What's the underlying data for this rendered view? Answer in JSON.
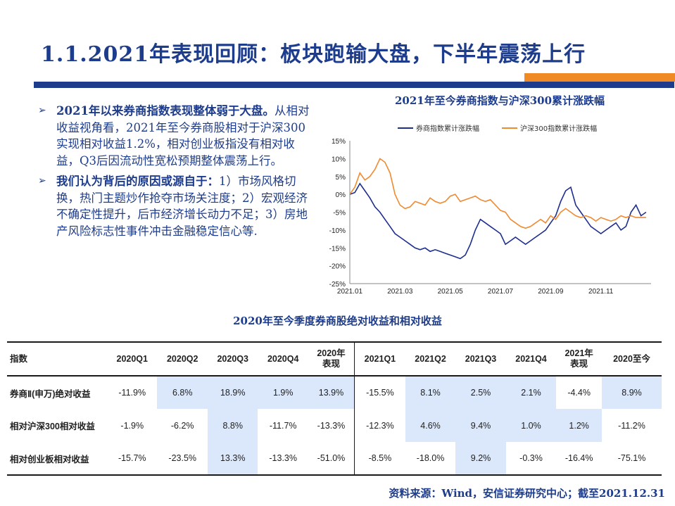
{
  "title": "1.1.2021年表现回顾：板块跑输大盘，下半年震荡上行",
  "bullets": [
    {
      "lead": "2021年以来券商指数表现整体弱于大盘。",
      "body": "从相对收益视角看，2021年至今券商股相对于沪深300实现相对收益1.2%，相对创业板指没有相对收益，Q3后因流动性宽松预期整体震荡上行。"
    },
    {
      "lead": "我们认为背后的原因或源自于：",
      "body": "1）市场风格切换，热门主题炒作抢夺市场关注度；2）宏观经济不确定性提升，后市经济增长动力不足；3）房地产风险标志性事件冲击金融稳定信心等."
    }
  ],
  "chart_title": "2021年至今券商指数与沪深300累计涨跌幅",
  "chart_data": {
    "type": "line",
    "title": "2021年至今券商指数与沪深300累计涨跌幅",
    "x_ticks": [
      "2021.01",
      "2021.03",
      "2021.05",
      "2021.07",
      "2021.09",
      "2021.11"
    ],
    "y_ticks": [
      "15%",
      "10%",
      "5%",
      "0%",
      "-5%",
      "-10%",
      "-15%",
      "-20%",
      "-25%"
    ],
    "ylim": [
      -25,
      15
    ],
    "xlim": [
      0,
      12
    ],
    "legend_position": "top",
    "series": [
      {
        "name": "券商指数累计涨跌幅",
        "color": "#1d2e8f",
        "x": [
          0,
          0.2,
          0.4,
          0.6,
          0.8,
          1.0,
          1.2,
          1.4,
          1.6,
          1.8,
          2.0,
          2.2,
          2.4,
          2.6,
          2.8,
          3.0,
          3.2,
          3.4,
          3.6,
          3.8,
          4.0,
          4.2,
          4.4,
          4.6,
          4.8,
          5.0,
          5.2,
          5.4,
          5.6,
          5.8,
          6.0,
          6.2,
          6.4,
          6.6,
          6.8,
          7.0,
          7.2,
          7.4,
          7.6,
          7.8,
          8.0,
          8.2,
          8.4,
          8.6,
          8.8,
          9.0,
          9.2,
          9.4,
          9.6,
          9.8,
          10.0,
          10.2,
          10.4,
          10.6,
          10.8,
          11.0,
          11.2,
          11.4,
          11.6,
          11.8
        ],
        "y": [
          0,
          0.5,
          3,
          1,
          -1,
          -3.5,
          -5,
          -7,
          -9,
          -11,
          -12,
          -13,
          -14,
          -15,
          -15.5,
          -15,
          -16,
          -15.5,
          -16,
          -16.5,
          -17,
          -17.5,
          -18,
          -17,
          -14,
          -10,
          -7,
          -8,
          -9,
          -10,
          -11,
          -14,
          -13,
          -12,
          -13,
          -14,
          -13,
          -12,
          -11,
          -10,
          -8,
          -6,
          -2,
          1,
          2,
          -3,
          -5,
          -7,
          -9,
          -10,
          -11,
          -10,
          -9,
          -8,
          -10,
          -9,
          -5,
          -3,
          -6,
          -5
        ]
      },
      {
        "name": "沪深300指数累计涨跌幅",
        "color": "#f08a30",
        "x": [
          0,
          0.2,
          0.4,
          0.6,
          0.8,
          1.0,
          1.2,
          1.4,
          1.6,
          1.8,
          2.0,
          2.2,
          2.4,
          2.6,
          2.8,
          3.0,
          3.2,
          3.4,
          3.6,
          3.8,
          4.0,
          4.2,
          4.4,
          4.6,
          4.8,
          5.0,
          5.2,
          5.4,
          5.6,
          5.8,
          6.0,
          6.2,
          6.4,
          6.6,
          6.8,
          7.0,
          7.2,
          7.4,
          7.6,
          7.8,
          8.0,
          8.2,
          8.4,
          8.6,
          8.8,
          9.0,
          9.2,
          9.4,
          9.6,
          9.8,
          10.0,
          10.2,
          10.4,
          10.6,
          10.8,
          11.0,
          11.2,
          11.4,
          11.6,
          11.8
        ],
        "y": [
          0,
          2,
          6,
          4,
          5,
          7,
          10,
          9,
          6,
          0,
          -3,
          -4,
          -3.5,
          -2,
          -2.5,
          -3,
          -1,
          -2,
          -2.5,
          -2,
          -0.5,
          0,
          -2,
          -1.5,
          -1,
          -0.5,
          -1.5,
          -2,
          -1.5,
          -3,
          -4.5,
          -5,
          -7,
          -8,
          -9,
          -9.5,
          -9,
          -8,
          -7,
          -8,
          -6,
          -7,
          -5,
          -4,
          -5,
          -6,
          -6.5,
          -6,
          -6.5,
          -7.5,
          -6.5,
          -7,
          -7.5,
          -7,
          -6,
          -6.5,
          -6,
          -6.5,
          -6.5,
          -6.5
        ]
      }
    ]
  },
  "table_title": "2020年至今季度券商股绝对收益和相对收益",
  "table": {
    "headers": [
      "指数",
      "2020Q1",
      "2020Q2",
      "2020Q3",
      "2020Q4",
      "2020年\n表现",
      "2021Q1",
      "2021Q2",
      "2021Q3",
      "2021Q4",
      "2021年\n表现",
      "2020至今"
    ],
    "rows": [
      {
        "name": "券商Ⅱ(申万)绝对收益",
        "cells": [
          "-11.9%",
          "6.8%",
          "18.9%",
          "1.9%",
          "13.9%",
          "-15.5%",
          "8.1%",
          "2.5%",
          "2.1%",
          "-4.4%",
          "8.9%"
        ],
        "hl": [
          false,
          true,
          true,
          true,
          true,
          false,
          true,
          true,
          true,
          false,
          true
        ]
      },
      {
        "name": "相对沪深300相对收益",
        "cells": [
          "-1.9%",
          "-6.2%",
          "8.8%",
          "-11.7%",
          "-13.3%",
          "-12.3%",
          "4.6%",
          "9.4%",
          "1.0%",
          "1.2%",
          "-11.2%"
        ],
        "hl": [
          false,
          false,
          true,
          false,
          false,
          false,
          true,
          true,
          true,
          true,
          false
        ]
      },
      {
        "name": "相对创业板相对收益",
        "cells": [
          "-15.7%",
          "-23.5%",
          "13.3%",
          "-13.3%",
          "-51.0%",
          "-8.5%",
          "-18.0%",
          "9.2%",
          "-0.3%",
          "-16.4%",
          "-75.1%"
        ],
        "hl": [
          false,
          false,
          true,
          false,
          false,
          false,
          false,
          true,
          false,
          false,
          false
        ]
      }
    ]
  },
  "source": "资料来源：Wind，安信证券研究中心；截至2021.12.31"
}
